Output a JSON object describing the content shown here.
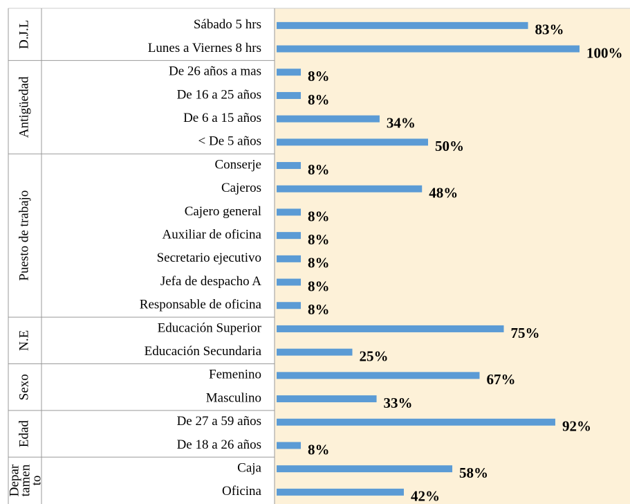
{
  "chart_data": {
    "type": "bar",
    "color": "#5b9bd5",
    "background": "#fdf1d8",
    "xlim": [
      0,
      100
    ],
    "groups": [
      {
        "name": "D.J.L",
        "categories": [
          "Sábado 5 hrs",
          "Lunes a Viernes 8 hrs"
        ],
        "values": [
          83,
          100
        ],
        "value_labels": [
          "83%",
          "100%"
        ]
      },
      {
        "name": "Antigüedad",
        "categories": [
          "De 26 años a mas",
          "De 16 a 25 años",
          "De 6 a 15 años",
          "< De 5 años"
        ],
        "values": [
          8,
          8,
          34,
          50
        ],
        "value_labels": [
          "8%",
          "8%",
          "34%",
          "50%"
        ]
      },
      {
        "name": "Puesto de trabajo",
        "categories": [
          "Conserje",
          "Cajeros",
          "Cajero general",
          "Auxiliar de oficina",
          "Secretario ejecutivo",
          "Jefa de despacho A",
          "Responsable de oficina"
        ],
        "values": [
          8,
          48,
          8,
          8,
          8,
          8,
          8
        ],
        "value_labels": [
          "8%",
          "48%",
          "8%",
          "8%",
          "8%",
          "8%",
          "8%"
        ]
      },
      {
        "name": "N.E",
        "categories": [
          "Educación Superior",
          "Educación Secundaria"
        ],
        "values": [
          75,
          25
        ],
        "value_labels": [
          "75%",
          "25%"
        ]
      },
      {
        "name": "Sexo",
        "categories": [
          "Femenino",
          "Masculino"
        ],
        "values": [
          67,
          33
        ],
        "value_labels": [
          "67%",
          "33%"
        ]
      },
      {
        "name": "Edad",
        "categories": [
          "De 27 a 59 años",
          "De 18 a 26 años"
        ],
        "values": [
          92,
          8
        ],
        "value_labels": [
          "92%",
          "8%"
        ]
      },
      {
        "name": [
          "Depar",
          "tamen",
          "to"
        ],
        "categories": [
          "Caja",
          "Oficina"
        ],
        "values": [
          58,
          42
        ],
        "value_labels": [
          "58%",
          "42%"
        ]
      }
    ]
  }
}
